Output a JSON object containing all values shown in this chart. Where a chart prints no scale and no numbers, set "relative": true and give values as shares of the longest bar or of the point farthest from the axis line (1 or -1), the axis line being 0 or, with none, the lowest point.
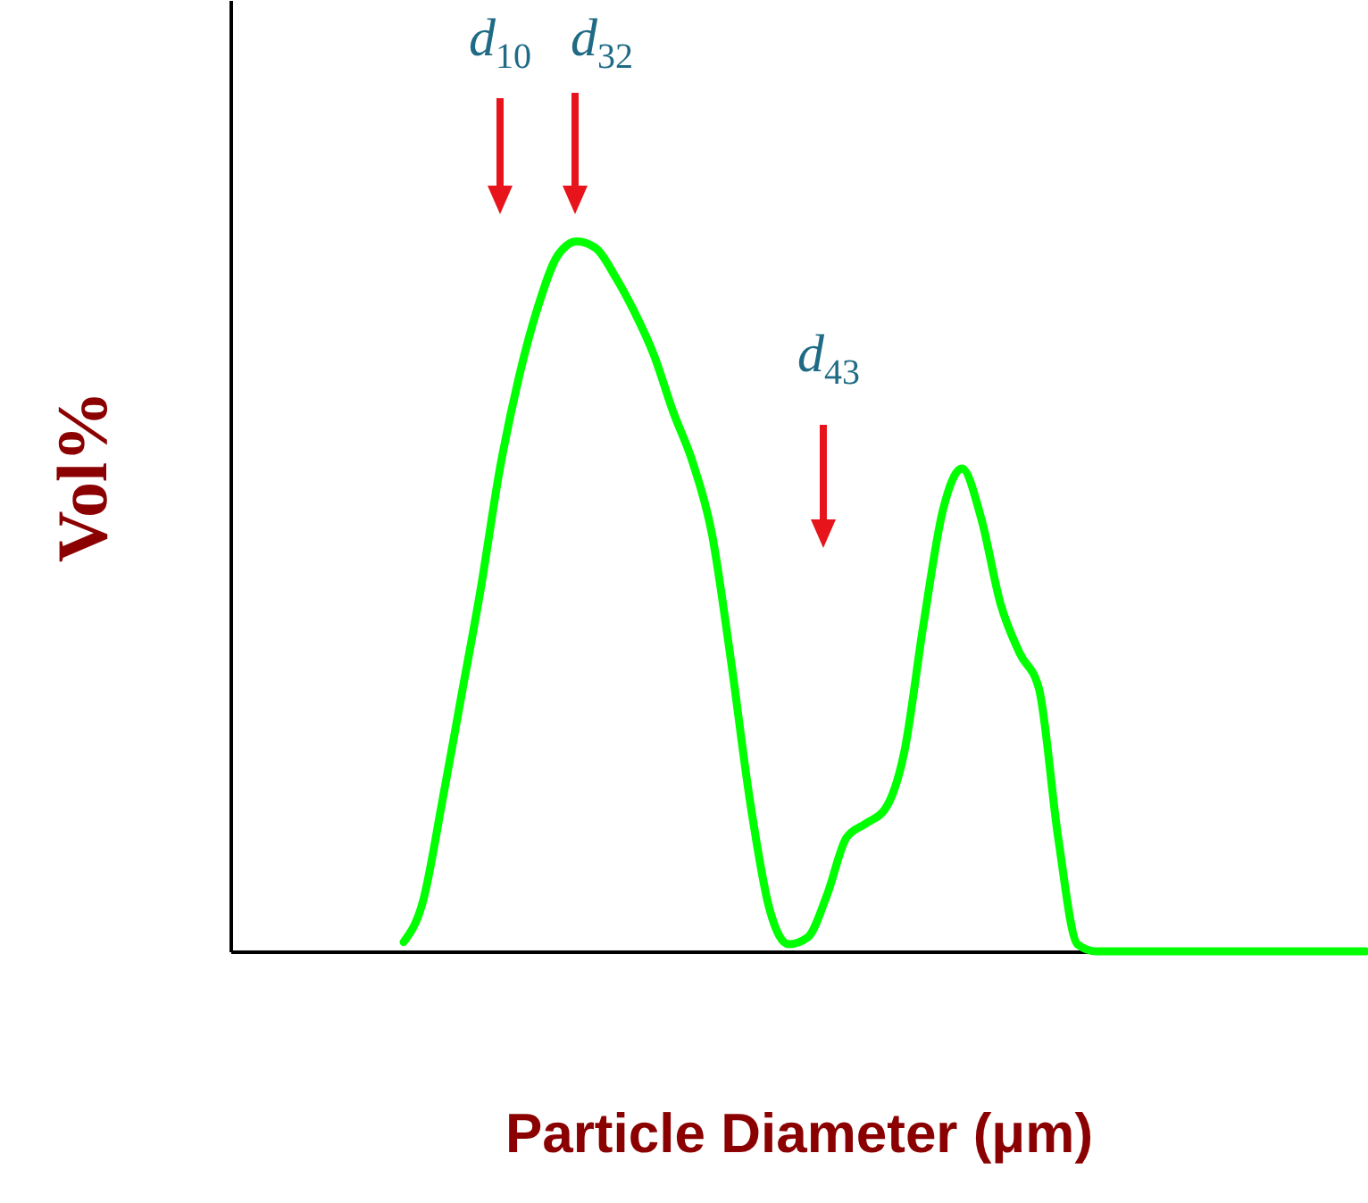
{
  "chart_data": {
    "type": "line",
    "relative": true,
    "xlabel": "Particle Diameter (μm)",
    "ylabel": "Vol%",
    "categories": [
      null,
      null,
      null,
      null,
      null,
      null,
      null,
      null,
      null,
      null,
      null,
      null,
      null,
      null,
      null,
      null,
      null,
      null,
      null,
      null,
      null,
      null,
      null,
      null,
      null,
      null,
      null,
      null,
      null,
      null,
      null,
      null,
      null,
      null,
      null,
      null,
      null,
      null,
      null,
      null,
      null,
      null,
      null,
      null,
      null,
      null,
      null,
      null,
      null,
      null,
      null,
      null,
      null,
      null,
      null,
      null,
      null,
      null,
      null,
      null
    ],
    "series": [
      {
        "color": "#00ff00",
        "values": [
          null,
          null,
          null,
          null,
          null,
          null,
          null,
          null,
          null,
          0.013,
          0.07,
          0.21,
          0.36,
          0.51,
          0.68,
          0.81,
          0.91,
          0.98,
          1,
          0.99,
          0.95,
          0.9,
          0.84,
          0.76,
          0.69,
          0.59,
          0.41,
          0.21,
          0.06,
          0.01,
          0.02,
          0.08,
          0.16,
          0.18,
          0.2,
          0.28,
          0.46,
          0.62,
          0.68,
          0.61,
          0.49,
          0.42,
          0.37,
          0.16,
          0.01,
          0,
          0,
          0,
          0,
          0,
          0,
          0,
          0,
          0,
          0,
          0,
          0,
          0,
          0,
          0
        ]
      }
    ],
    "annotations": [
      "d$_{10}$",
      "d$_{32}$",
      "d$_{43}$"
    ],
    "grid": false
  }
}
